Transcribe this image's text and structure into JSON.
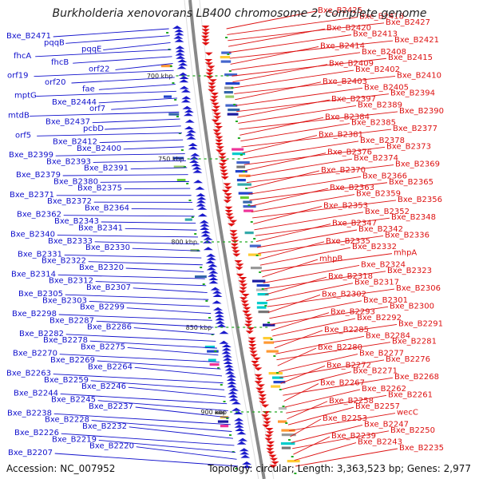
{
  "title": "Burkholderia xenovorans LB400 chromosome 2, complete genome",
  "footer": {
    "accession": "Accession: NC_007952",
    "summary": "Topology: circular; Length: 3,363,523 bp; Genes: 2,977"
  },
  "colors": {
    "left_labels": "#1111cc",
    "right_labels": "#dd1111",
    "backbone": "#888888"
  },
  "kbp_ticks": [
    "700 kbp",
    "750 kbp",
    "800 kbp",
    "850 kbp",
    "900 kbp"
  ],
  "left_genes": [
    "Bxe_B2471",
    "pqqB",
    "pqqE",
    "fhcA",
    "fhcB",
    "orf22",
    "orf19",
    "orf20",
    "fae",
    "mptG",
    "Bxe_B2444",
    "orf7",
    "mtdB",
    "Bxe_B2437",
    "pcbD",
    "orf5",
    "Bxe_B2412",
    "Bxe_B2400",
    "Bxe_B2399",
    "Bxe_B2393",
    "Bxe_B2391",
    "Bxe_B2379",
    "Bxe_B2380",
    "Bxe_B2375",
    "Bxe_B2371",
    "Bxe_B2372",
    "Bxe_B2364",
    "Bxe_B2362",
    "Bxe_B2343",
    "Bxe_B2341",
    "Bxe_B2340",
    "Bxe_B2333",
    "Bxe_B2330",
    "Bxe_B2331",
    "Bxe_B2322",
    "Bxe_B2320",
    "Bxe_B2314",
    "Bxe_B2312",
    "Bxe_B2307",
    "Bxe_B2305",
    "Bxe_B2303",
    "Bxe_B2299",
    "Bxe_B2298",
    "Bxe_B2287",
    "Bxe_B2286",
    "Bxe_B2282",
    "Bxe_B2278",
    "Bxe_B2275",
    "Bxe_B2270",
    "Bxe_B2269",
    "Bxe_B2264",
    "Bxe_B2263",
    "Bxe_B2259",
    "Bxe_B2246",
    "Bxe_B2244",
    "Bxe_B2245",
    "Bxe_B2237",
    "Bxe_B2238",
    "Bxe_B2228",
    "Bxe_B2232",
    "Bxe_B2226",
    "Bxe_B2219",
    "Bxe_B2220",
    "Bxe_B2207"
  ],
  "right_genes": [
    "Bxe_B2425",
    "Bxe_B2418",
    "Bxe_B2427",
    "Bxe_B2420",
    "Bxe_B2413",
    "Bxe_B2421",
    "Bxe_B2414",
    "Bxe_B2408",
    "Bxe_B2415",
    "Bxe_B2409",
    "Bxe_B2402",
    "Bxe_B2410",
    "Bxe_B2403",
    "Bxe_B2405",
    "Bxe_B2394",
    "Bxe_B2397",
    "Bxe_B2389",
    "Bxe_B2390",
    "Bxe_B2384",
    "Bxe_B2385",
    "Bxe_B2377",
    "Bxe_B2381",
    "Bxe_B2378",
    "Bxe_B2373",
    "Bxe_B2376",
    "Bxe_B2374",
    "Bxe_B2369",
    "Bxe_B2370",
    "Bxe_B2366",
    "Bxe_B2365",
    "Bxe_B2363",
    "Bxe_B2359",
    "Bxe_B2356",
    "Bxe_B2353",
    "Bxe_B2352",
    "Bxe_B2348",
    "Bxe_B2347",
    "Bxe_B2342",
    "Bxe_B2336",
    "Bxe_B2335",
    "Bxe_B2332",
    "mhpA",
    "mhpB",
    "Bxe_B2324",
    "Bxe_B2323",
    "Bxe_B2318",
    "Bxe_B2317",
    "Bxe_B2306",
    "Bxe_B2302",
    "Bxe_B2301",
    "Bxe_B2300",
    "Bxe_B2293",
    "Bxe_B2292",
    "Bxe_B2291",
    "Bxe_B2285",
    "Bxe_B2284",
    "Bxe_B2281",
    "Bxe_B2280",
    "Bxe_B2277",
    "Bxe_B2276",
    "Bxe_B2272",
    "Bxe_B2271",
    "Bxe_B2268",
    "Bxe_B2267",
    "Bxe_B2262",
    "Bxe_B2261",
    "Bxe_B2258",
    "Bxe_B2257",
    "wecC",
    "Bxe_B2253",
    "Bxe_B2247",
    "Bxe_B2250",
    "Bxe_B2239",
    "Bxe_B2243",
    "Bxe_B2235"
  ]
}
